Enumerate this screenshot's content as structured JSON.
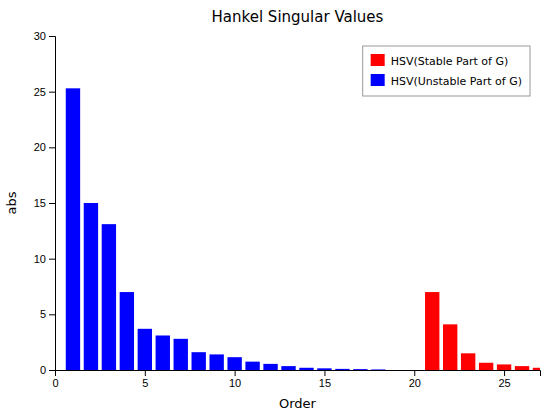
{
  "chart_data": {
    "type": "bar",
    "title": "Hankel Singular Values",
    "xlabel": "Order",
    "ylabel": "abs",
    "xlim": [
      0,
      27
    ],
    "ylim": [
      0,
      30
    ],
    "xticks": [
      0,
      5,
      10,
      15,
      20,
      25
    ],
    "yticks": [
      0,
      5,
      10,
      15,
      20,
      25,
      30
    ],
    "grid": false,
    "legend": "upper right",
    "series": [
      {
        "name": "HSV(Stable Part of G)",
        "color": "#ff0000",
        "x": [
          21,
          22,
          23,
          24,
          25,
          26,
          27
        ],
        "values": [
          7.0,
          4.1,
          1.5,
          0.65,
          0.5,
          0.35,
          0.2
        ]
      },
      {
        "name": "HSV(Unstable Part of G)",
        "color": "#0000ff",
        "x": [
          1,
          2,
          3,
          4,
          5,
          6,
          7,
          8,
          9,
          10,
          11,
          12,
          13,
          14,
          15,
          16,
          17,
          18
        ],
        "values": [
          25.3,
          15.0,
          13.1,
          7.0,
          3.7,
          3.1,
          2.8,
          1.6,
          1.4,
          1.15,
          0.75,
          0.55,
          0.35,
          0.2,
          0.15,
          0.1,
          0.08,
          0.05
        ]
      }
    ]
  }
}
